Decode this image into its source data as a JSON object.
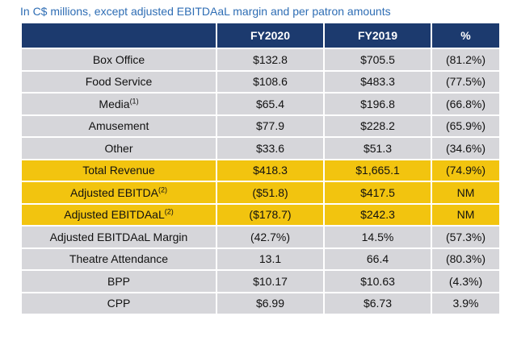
{
  "subtitle": "In C$ millions, except adjusted EBITDAaL margin and per patron amounts",
  "colors": {
    "header": "#1c3a6e",
    "gray_row": "#d6d6da",
    "gold_row": "#f2c40f",
    "subtitle": "#2e6db4"
  },
  "table": {
    "headers": [
      "",
      "FY2020",
      "FY2019",
      "%"
    ],
    "rows": [
      {
        "label": "Box Office",
        "sup": "",
        "fy2020": "$132.8",
        "fy2019": "$705.5",
        "pct": "(81.2%)",
        "style": "gray"
      },
      {
        "label": "Food Service",
        "sup": "",
        "fy2020": "$108.6",
        "fy2019": "$483.3",
        "pct": "(77.5%)",
        "style": "gray"
      },
      {
        "label": "Media",
        "sup": "(1)",
        "fy2020": "$65.4",
        "fy2019": "$196.8",
        "pct": "(66.8%)",
        "style": "gray"
      },
      {
        "label": "Amusement",
        "sup": "",
        "fy2020": "$77.9",
        "fy2019": "$228.2",
        "pct": "(65.9%)",
        "style": "gray"
      },
      {
        "label": "Other",
        "sup": "",
        "fy2020": "$33.6",
        "fy2019": "$51.3",
        "pct": "(34.6%)",
        "style": "gray"
      },
      {
        "label": "Total Revenue",
        "sup": "",
        "fy2020": "$418.3",
        "fy2019": "$1,665.1",
        "pct": "(74.9%)",
        "style": "gold"
      },
      {
        "label": "Adjusted EBITDA",
        "sup": "(2)",
        "fy2020": "($51.8)",
        "fy2019": "$417.5",
        "pct": "NM",
        "style": "gold"
      },
      {
        "label": "Adjusted EBITDAaL",
        "sup": "(2)",
        "fy2020": "($178.7)",
        "fy2019": "$242.3",
        "pct": "NM",
        "style": "gold"
      },
      {
        "label": "Adjusted EBITDAaL Margin",
        "sup": "",
        "fy2020": "(42.7%)",
        "fy2019": "14.5%",
        "pct": "(57.3%)",
        "style": "gray"
      },
      {
        "label": "Theatre Attendance",
        "sup": "",
        "fy2020": "13.1",
        "fy2019": "66.4",
        "pct": "(80.3%)",
        "style": "gray"
      },
      {
        "label": "BPP",
        "sup": "",
        "fy2020": "$10.17",
        "fy2019": "$10.63",
        "pct": "(4.3%)",
        "style": "gray"
      },
      {
        "label": "CPP",
        "sup": "",
        "fy2020": "$6.99",
        "fy2019": "$6.73",
        "pct": "3.9%",
        "style": "gray"
      }
    ]
  }
}
